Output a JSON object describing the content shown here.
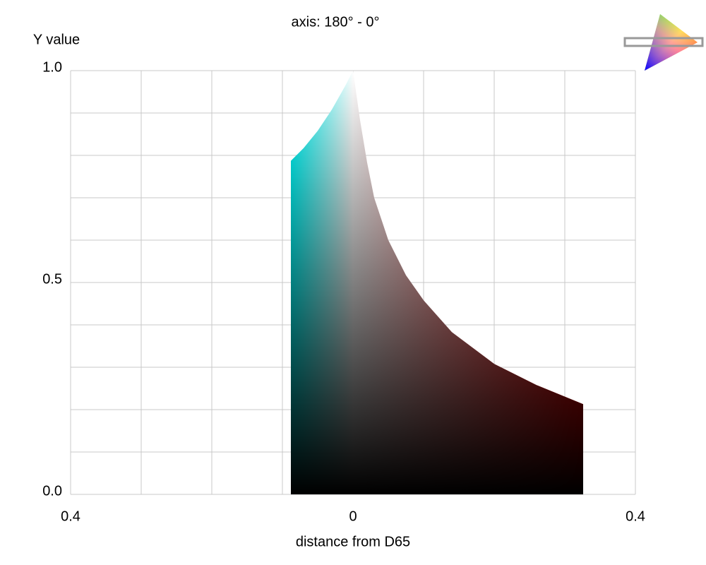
{
  "chart_data": {
    "type": "gamut-slice",
    "title": "axis: 180° - 0°",
    "y_label": "Y value",
    "x_label": "distance from D65",
    "x": [
      -0.088,
      -0.088,
      -0.07,
      -0.05,
      -0.03,
      -0.01,
      0,
      0.01,
      0.02,
      0.03,
      0.05,
      0.075,
      0.1,
      0.14,
      0.2,
      0.26,
      0.326,
      0.326
    ],
    "values": [
      0,
      0.787,
      0.817,
      0.858,
      0.908,
      0.967,
      1.0,
      0.883,
      0.783,
      0.7,
      0.6,
      0.517,
      0.458,
      0.383,
      0.308,
      0.258,
      0.213,
      0
    ],
    "colors": {
      "left": "#00ffff",
      "center": "#ffffff",
      "right": "#ff0000",
      "bottom": "#000000"
    },
    "xlim": [
      -0.4,
      0.4
    ],
    "ylim": [
      0,
      1
    ],
    "xticks": [
      {
        "value": -0.4,
        "label": "0.4"
      },
      0,
      0.4
    ],
    "yticks": [
      {
        "value": 0,
        "label": "0.0"
      },
      0.5,
      {
        "value": 1,
        "label": "1.0"
      }
    ],
    "xgrid": [
      -0.3,
      -0.2,
      -0.1,
      0.1,
      0.2,
      0.3
    ],
    "ygrid": [
      0.1,
      0.2,
      0.3,
      0.4,
      0.6,
      0.7,
      0.8,
      0.9
    ],
    "grid": true
  }
}
